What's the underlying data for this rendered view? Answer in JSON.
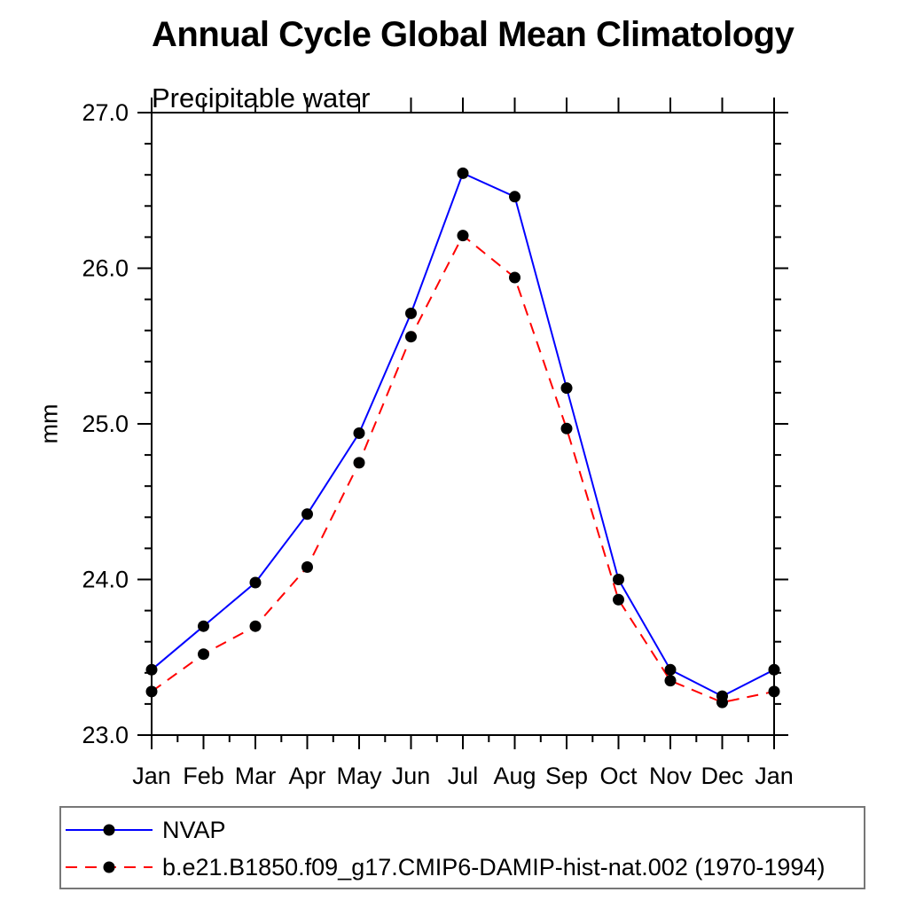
{
  "title": "Annual Cycle Global Mean Climatology",
  "subtitle": "Precipitable water",
  "ylabel": "mm",
  "colors": {
    "series1": "#0000ff",
    "series2": "#ff0000",
    "marker": "#000000",
    "axis": "#000000",
    "legend_border": "#777777"
  },
  "chart_data": {
    "type": "line",
    "title": "Annual Cycle Global Mean Climatology",
    "subtitle": "Precipitable water",
    "xlabel": "",
    "ylabel": "mm",
    "categories": [
      "Jan",
      "Feb",
      "Mar",
      "Apr",
      "May",
      "Jun",
      "Jul",
      "Aug",
      "Sep",
      "Oct",
      "Nov",
      "Dec",
      "Jan"
    ],
    "series": [
      {
        "name": "NVAP",
        "color": "#0000ff",
        "line": "solid",
        "marker": "circle",
        "marker_color": "#000000",
        "values": [
          23.42,
          23.7,
          23.98,
          24.42,
          24.94,
          25.71,
          26.61,
          26.46,
          25.23,
          24.0,
          23.42,
          23.25,
          23.42
        ]
      },
      {
        "name": "b.e21.B1850.f09_g17.CMIP6-DAMIP-hist-nat.002 (1970-1994)",
        "color": "#ff0000",
        "line": "dashed",
        "marker": "circle",
        "marker_color": "#000000",
        "values": [
          23.28,
          23.52,
          23.7,
          24.08,
          24.75,
          25.56,
          26.21,
          25.94,
          24.97,
          23.87,
          23.35,
          23.21,
          23.28
        ]
      }
    ],
    "ylim": [
      23.0,
      27.0
    ],
    "ytick_major_interval": 1.0,
    "ytick_minor_interval": 0.2,
    "ytick_labels": [
      "23.0",
      "24.0",
      "25.0",
      "26.0",
      "27.0"
    ],
    "grid": false,
    "legend_position": "bottom-left"
  }
}
